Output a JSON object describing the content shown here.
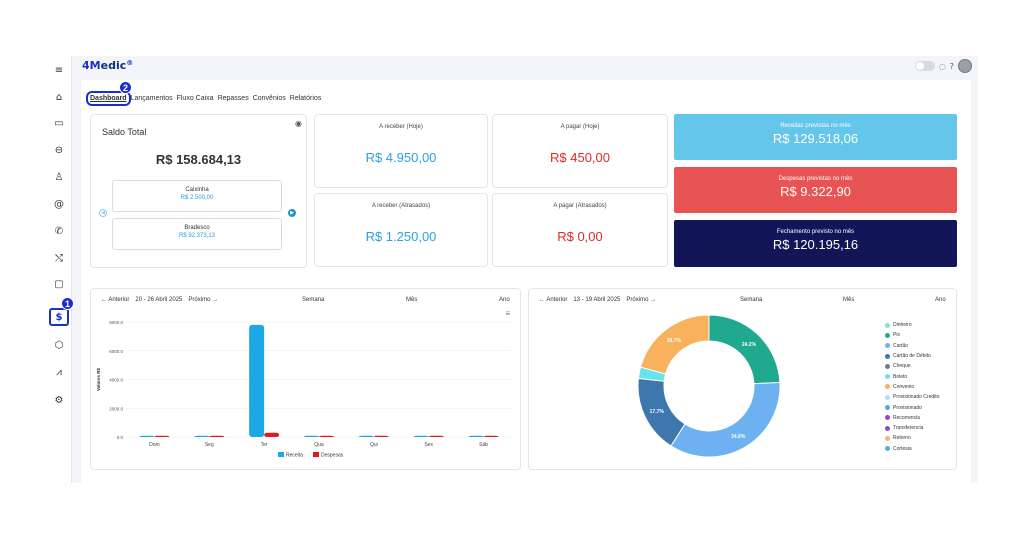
{
  "app": {
    "logo_main": "4M",
    "logo_rest": "edic",
    "logo_mark": "®"
  },
  "sidebar": {
    "items": [
      {
        "icon": "menu-icon",
        "glyph": "≡"
      },
      {
        "icon": "home-icon",
        "glyph": "⌂"
      },
      {
        "icon": "calendar-icon",
        "glyph": "▭"
      },
      {
        "icon": "car-icon",
        "glyph": "⊖"
      },
      {
        "icon": "user-icon",
        "glyph": "♙"
      },
      {
        "icon": "at-icon",
        "glyph": "@"
      },
      {
        "icon": "phone-icon",
        "glyph": "✆"
      },
      {
        "icon": "shuffle-icon",
        "glyph": "⤭"
      },
      {
        "icon": "clipboard-icon",
        "glyph": "▢"
      },
      {
        "icon": "dollar-icon",
        "glyph": "$"
      },
      {
        "icon": "box-icon",
        "glyph": "⬡"
      },
      {
        "icon": "chart-icon",
        "glyph": "⩘"
      },
      {
        "icon": "settings-icon",
        "glyph": "⚙"
      }
    ]
  },
  "markers": {
    "one": "1",
    "two": "2"
  },
  "tabs": [
    "Dashboard",
    "Lançamentos",
    "Fluxo Caixa",
    "Repasses",
    "Convênios",
    "Relatórios"
  ],
  "saldo": {
    "title": "Saldo Total",
    "value": "R$ 158.684,13",
    "accounts": [
      {
        "name": "Caixinha",
        "value": "R$ 2.500,00"
      },
      {
        "name": "Bradesco",
        "value": "R$ 92.373,13"
      }
    ]
  },
  "stats": {
    "receber_hoje": {
      "label": "A receber (Hoje)",
      "value": "R$ 4.950,00",
      "color": "#29a3df"
    },
    "pagar_hoje": {
      "label": "A pagar (Hoje)",
      "value": "R$ 450,00",
      "color": "#e02a2a"
    },
    "receber_atrasados": {
      "label": "A receber (Atrasados)",
      "value": "R$ 1.250,00",
      "color": "#29a3df"
    },
    "pagar_atrasados": {
      "label": "A pagar (Atrasados)",
      "value": "R$ 0,00",
      "color": "#e02a2a"
    }
  },
  "previstas": {
    "receitas": {
      "label": "Receitas previstas no mês",
      "value": "R$ 129.518,06",
      "color": "#65c6ec"
    },
    "despesas": {
      "label": "Despesas previstas no mês",
      "value": "R$ 9.322,90",
      "color": "#e85353"
    },
    "fechamento": {
      "label": "Fechamento previsto no mês",
      "value": "R$ 120.195,16",
      "color": "#121558"
    }
  },
  "bar_panel": {
    "prev": "← Anterior",
    "range": "20 - 26 Abril 2025",
    "next": "Próximo →",
    "modes": [
      "Semana",
      "Mês",
      "Ano"
    ]
  },
  "pie_panel": {
    "prev": "← Anterior",
    "range": "13 - 19 Abril 2025",
    "next": "Próximo →",
    "modes": [
      "Semana",
      "Mês",
      "Ano"
    ]
  },
  "chart_data": [
    {
      "type": "bar",
      "categories": [
        "Dom",
        "Seg",
        "Ter",
        "Qua",
        "Qui",
        "Sex",
        "Sáb"
      ],
      "series": [
        {
          "name": "Receita",
          "values": [
            0,
            0,
            7800,
            0,
            0,
            0,
            0
          ],
          "color": "#1ca7e6"
        },
        {
          "name": "Despesas",
          "values": [
            0,
            0,
            300,
            0,
            0,
            0,
            0
          ],
          "color": "#e01b1b"
        }
      ],
      "yticks": [
        "8000.0",
        "6000.0",
        "4000.0",
        "2000.0",
        "0.0"
      ],
      "ylabel": "Valores R$",
      "ylim": [
        0,
        8000
      ],
      "grid": true,
      "legend": "bottom"
    },
    {
      "type": "pie",
      "donut": true,
      "slices": [
        {
          "name": "Dinheiro",
          "value": 0,
          "color": "#7fe3cf"
        },
        {
          "name": "Pix",
          "value": 24.2,
          "label": "24.2%",
          "color": "#1fa98e"
        },
        {
          "name": "Cartão",
          "value": 34.8,
          "label": "34.8%",
          "color": "#6db1f0"
        },
        {
          "name": "Cartão de Débito",
          "value": 17.7,
          "label": "17.7%",
          "color": "#3d77ad"
        },
        {
          "name": "Cheque",
          "value": 0,
          "color": "#6b7a8c"
        },
        {
          "name": "Boleto",
          "value": 2.6,
          "color": "#67e3ee"
        },
        {
          "name": "Convenio",
          "value": 20.7,
          "label": "20.7%",
          "color": "#f8b15c"
        },
        {
          "name": "Provisionado Credito",
          "value": 0,
          "color": "#aee0f7"
        },
        {
          "name": "Provisionado",
          "value": 0,
          "color": "#55a6e8"
        },
        {
          "name": "Recorrencia",
          "value": 0,
          "color": "#a33ccf"
        },
        {
          "name": "Transferencia",
          "value": 0,
          "color": "#7d53c9"
        },
        {
          "name": "Retorno",
          "value": 0,
          "color": "#f6b86a"
        },
        {
          "name": "Cortesia",
          "value": 0,
          "color": "#4fb1e8"
        }
      ],
      "legend": "right"
    }
  ]
}
